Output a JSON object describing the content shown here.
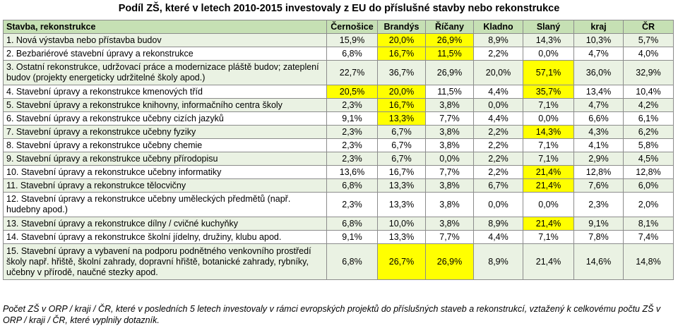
{
  "title": "Podíl ZŠ, které v letech 2010-2015 investovaly z EU do příslušné stavby nebo rekonstrukce",
  "header": {
    "label": "Stavba, rekonstrukce",
    "columns": [
      "Černošice",
      "Brandýs",
      "Říčany",
      "Kladno",
      "Slaný",
      "kraj",
      "ČR"
    ]
  },
  "highlight_color": "#ffff00",
  "rows": [
    {
      "label": "1. Nová výstavba nebo přístavba budov",
      "values": [
        "15,9%",
        "20,0%",
        "26,9%",
        "8,9%",
        "14,3%",
        "10,3%",
        "5,7%"
      ],
      "highlight": [
        1,
        2
      ]
    },
    {
      "label": "2. Bezbariérové stavební úpravy a rekonstrukce",
      "values": [
        "6,8%",
        "16,7%",
        "11,5%",
        "2,2%",
        "0,0%",
        "4,7%",
        "4,0%"
      ],
      "highlight": [
        1,
        2
      ]
    },
    {
      "label": "3. Ostatní rekonstrukce, udržovací práce a modernizace pláště budov; zateplení budov (projekty energeticky udržitelné školy apod.)",
      "values": [
        "22,7%",
        "36,7%",
        "26,9%",
        "20,0%",
        "57,1%",
        "36,0%",
        "32,9%"
      ],
      "highlight": [
        4
      ]
    },
    {
      "label": "4. Stavební úpravy a rekonstrukce kmenových tříd",
      "values": [
        "20,5%",
        "20,0%",
        "11,5%",
        "4,4%",
        "35,7%",
        "13,4%",
        "10,4%"
      ],
      "highlight": [
        0,
        1,
        4
      ]
    },
    {
      "label": "5. Stavební úpravy a rekonstrukce knihovny, informačního centra školy",
      "values": [
        "2,3%",
        "16,7%",
        "3,8%",
        "0,0%",
        "7,1%",
        "4,7%",
        "4,2%"
      ],
      "highlight": [
        1
      ]
    },
    {
      "label": "6. Stavební úpravy a rekonstrukce učebny cizích jazyků",
      "values": [
        "9,1%",
        "13,3%",
        "7,7%",
        "4,4%",
        "0,0%",
        "6,6%",
        "6,1%"
      ],
      "highlight": [
        1
      ]
    },
    {
      "label": "7. Stavební úpravy a rekonstrukce učebny fyziky",
      "values": [
        "2,3%",
        "6,7%",
        "3,8%",
        "2,2%",
        "14,3%",
        "4,3%",
        "6,2%"
      ],
      "highlight": [
        4
      ]
    },
    {
      "label": "8. Stavební úpravy a rekonstrukce učebny chemie",
      "values": [
        "2,3%",
        "6,7%",
        "3,8%",
        "2,2%",
        "7,1%",
        "4,1%",
        "5,8%"
      ],
      "highlight": []
    },
    {
      "label": "9. Stavební úpravy a rekonstrukce učebny přírodopisu",
      "values": [
        "2,3%",
        "6,7%",
        "0,0%",
        "2,2%",
        "7,1%",
        "2,9%",
        "4,5%"
      ],
      "highlight": []
    },
    {
      "label": "10. Stavební úpravy a rekonstrukce učebny informatiky",
      "values": [
        "13,6%",
        "16,7%",
        "7,7%",
        "2,2%",
        "21,4%",
        "12,8%",
        "12,8%"
      ],
      "highlight": [
        4
      ]
    },
    {
      "label": "11. Stavební úpravy a rekonstrukce tělocvičny",
      "values": [
        "6,8%",
        "13,3%",
        "3,8%",
        "6,7%",
        "21,4%",
        "7,6%",
        "6,0%"
      ],
      "highlight": [
        4
      ]
    },
    {
      "label": "12. Stavební úpravy a rekonstrukce učebny uměleckých předmětů (např. hudebny apod.)",
      "values": [
        "2,3%",
        "13,3%",
        "3,8%",
        "0,0%",
        "0,0%",
        "2,3%",
        "2,0%"
      ],
      "highlight": []
    },
    {
      "label": "13. Stavební úpravy a rekonstrukce dílny / cvičné kuchyňky",
      "values": [
        "6,8%",
        "10,0%",
        "3,8%",
        "8,9%",
        "21,4%",
        "9,1%",
        "8,1%"
      ],
      "highlight": [
        4
      ]
    },
    {
      "label": "14. Stavební úpravy a rekonstrukce školní jídelny, družiny, klubu apod.",
      "values": [
        "9,1%",
        "13,3%",
        "7,7%",
        "4,4%",
        "7,1%",
        "7,8%",
        "7,4%"
      ],
      "highlight": []
    },
    {
      "label": "15. Stavební úpravy a vybavení na podporu podnětného venkovního prostředí školy např. hřiště, školní zahrady, dopravní hřiště, botanické zahrady, rybníky, učebny v přírodě, naučné stezky apod.",
      "values": [
        "6,8%",
        "26,7%",
        "26,9%",
        "8,9%",
        "21,4%",
        "14,6%",
        "14,8%"
      ],
      "highlight": [
        1,
        2
      ]
    }
  ],
  "footnote": "Počet ZŠ v ORP / kraji / ČR, které v posledních 5 letech investovaly v rámci evropských projektů do příslušných staveb a rekonstrukcí, vztažený k celkovému počtu ZŠ v ORP / kraji / ČR, které vyplnily dotazník."
}
